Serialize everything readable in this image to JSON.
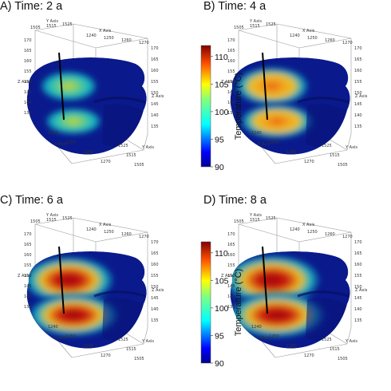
{
  "panels": [
    {
      "title": "A) Time: 2 a",
      "axes": {
        "y_axis": "Y Axis",
        "x_axis": "X Axis",
        "z_axis": "Z Axis"
      },
      "y_ticks": [
        "1505",
        "1515",
        "1525"
      ],
      "x_ticks": [
        "1240",
        "1250",
        "1260",
        "1270"
      ],
      "z_ticks": [
        "170",
        "165",
        "160",
        "155",
        "150",
        "145",
        "140",
        "135"
      ],
      "heat_level": 0.25
    },
    {
      "title": "B) Time: 4 a",
      "axes": {
        "y_axis": "Y Axis",
        "x_axis": "X Axis",
        "z_axis": "Z Axis"
      },
      "y_ticks": [
        "1505",
        "1515",
        "1525"
      ],
      "x_ticks": [
        "1240",
        "1250",
        "1260",
        "1270"
      ],
      "z_ticks": [
        "170",
        "165",
        "160",
        "155",
        "150",
        "145",
        "140",
        "135"
      ],
      "heat_level": 0.55
    },
    {
      "title": "C) Time: 6 a",
      "axes": {
        "y_axis": "Y Axis",
        "x_axis": "X Axis",
        "z_axis": "Z Axis"
      },
      "y_ticks": [
        "1505",
        "1515",
        "1525"
      ],
      "x_ticks": [
        "1240",
        "1250",
        "1260",
        "1270"
      ],
      "z_ticks": [
        "170",
        "165",
        "160",
        "155",
        "150",
        "145",
        "140",
        "135"
      ],
      "heat_level": 0.85
    },
    {
      "title": "D) Time: 8 a",
      "axes": {
        "y_axis": "Y Axis",
        "x_axis": "X Axis",
        "z_axis": "Z Axis"
      },
      "y_ticks": [
        "1505",
        "1515",
        "1525"
      ],
      "x_ticks": [
        "1240",
        "1250",
        "1260",
        "1270"
      ],
      "z_ticks": [
        "170",
        "165",
        "160",
        "155",
        "150",
        "145",
        "140",
        "135"
      ],
      "heat_level": 0.95
    }
  ],
  "colorbars": [
    {
      "label": "Temperature (°C)",
      "ticks": [
        "110",
        "105",
        "100",
        "95",
        "90"
      ],
      "min": 90,
      "max": 112
    },
    {
      "label": "Temperature (°C)",
      "ticks": [
        "110",
        "105",
        "100",
        "95",
        "90"
      ],
      "min": 90,
      "max": 112
    }
  ],
  "colors": {
    "cold": "#0a1a8c",
    "mid": "#10b0c8",
    "hot": "#9c0a0a",
    "background": "#ffffff"
  }
}
